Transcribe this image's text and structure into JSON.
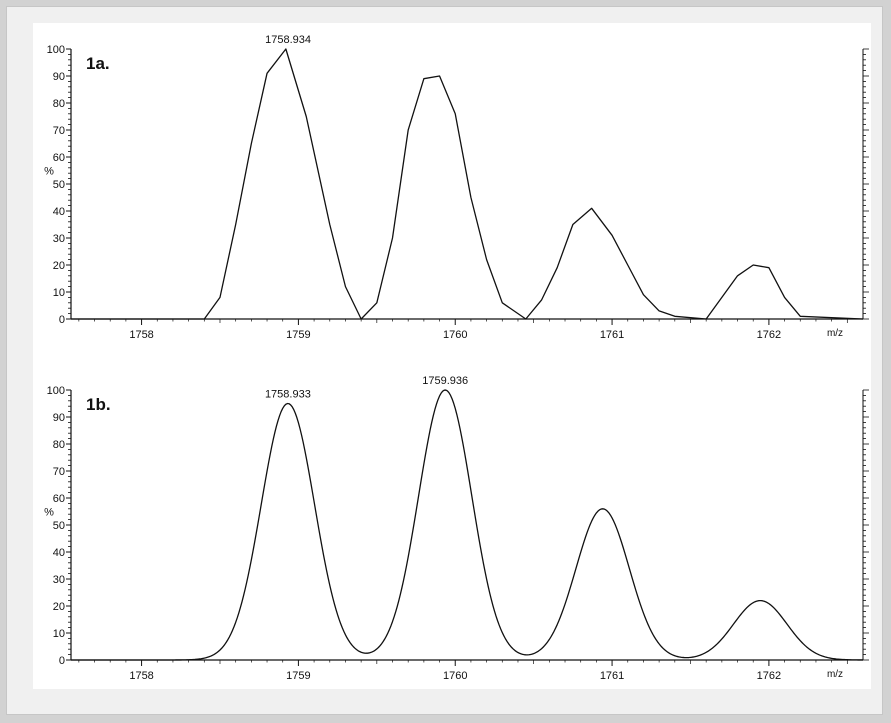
{
  "chart_data": [
    {
      "type": "line",
      "panel_label": "1a.",
      "xlabel": "m/z",
      "ylabel": "%",
      "xlim": [
        1757.55,
        1762.6
      ],
      "ylim": [
        0,
        100
      ],
      "x_ticks": [
        "1758",
        "1759",
        "1760",
        "1761",
        "1762"
      ],
      "y_ticks": [
        "0",
        "10",
        "20",
        "30",
        "40",
        "50",
        "60",
        "70",
        "80",
        "90",
        "100"
      ],
      "peak_labels": [
        {
          "x": 1758.934,
          "y": 100,
          "text": "1758.934"
        }
      ],
      "series": [
        {
          "x": [
            1757.55,
            1758.4,
            1758.5,
            1758.6,
            1758.7,
            1758.8,
            1758.92,
            1759.05,
            1759.2,
            1759.3,
            1759.4,
            1759.5,
            1759.6,
            1759.7,
            1759.8,
            1759.9,
            1760.0,
            1760.1,
            1760.2,
            1760.3,
            1760.45,
            1760.55,
            1760.65,
            1760.75,
            1760.87,
            1761.0,
            1761.1,
            1761.2,
            1761.3,
            1761.4,
            1761.6,
            1761.7,
            1761.8,
            1761.9,
            1762.0,
            1762.1,
            1762.2,
            1762.6
          ],
          "y": [
            0,
            0,
            8,
            35,
            65,
            91,
            100,
            75,
            35,
            12,
            0,
            6,
            30,
            70,
            89,
            90,
            76,
            45,
            22,
            6,
            0,
            7,
            19,
            35,
            41,
            31,
            20,
            9,
            3,
            1,
            0,
            8,
            16,
            20,
            19,
            8,
            1,
            0
          ]
        }
      ]
    },
    {
      "type": "line",
      "panel_label": "1b.",
      "xlabel": "m/z",
      "ylabel": "%",
      "xlim": [
        1757.55,
        1762.6
      ],
      "ylim": [
        0,
        100
      ],
      "x_ticks": [
        "1758",
        "1759",
        "1760",
        "1761",
        "1762"
      ],
      "y_ticks": [
        "0",
        "10",
        "20",
        "30",
        "40",
        "50",
        "60",
        "70",
        "80",
        "90",
        "100"
      ],
      "peak_labels": [
        {
          "x": 1758.933,
          "y": 95,
          "text": "1758.933"
        },
        {
          "x": 1759.936,
          "y": 100,
          "text": "1759.936"
        }
      ],
      "peaks": [
        {
          "center": 1758.933,
          "height": 95
        },
        {
          "center": 1759.936,
          "height": 100
        },
        {
          "center": 1760.94,
          "height": 56
        },
        {
          "center": 1761.945,
          "height": 22
        }
      ],
      "peak_sigma": 0.17
    }
  ]
}
